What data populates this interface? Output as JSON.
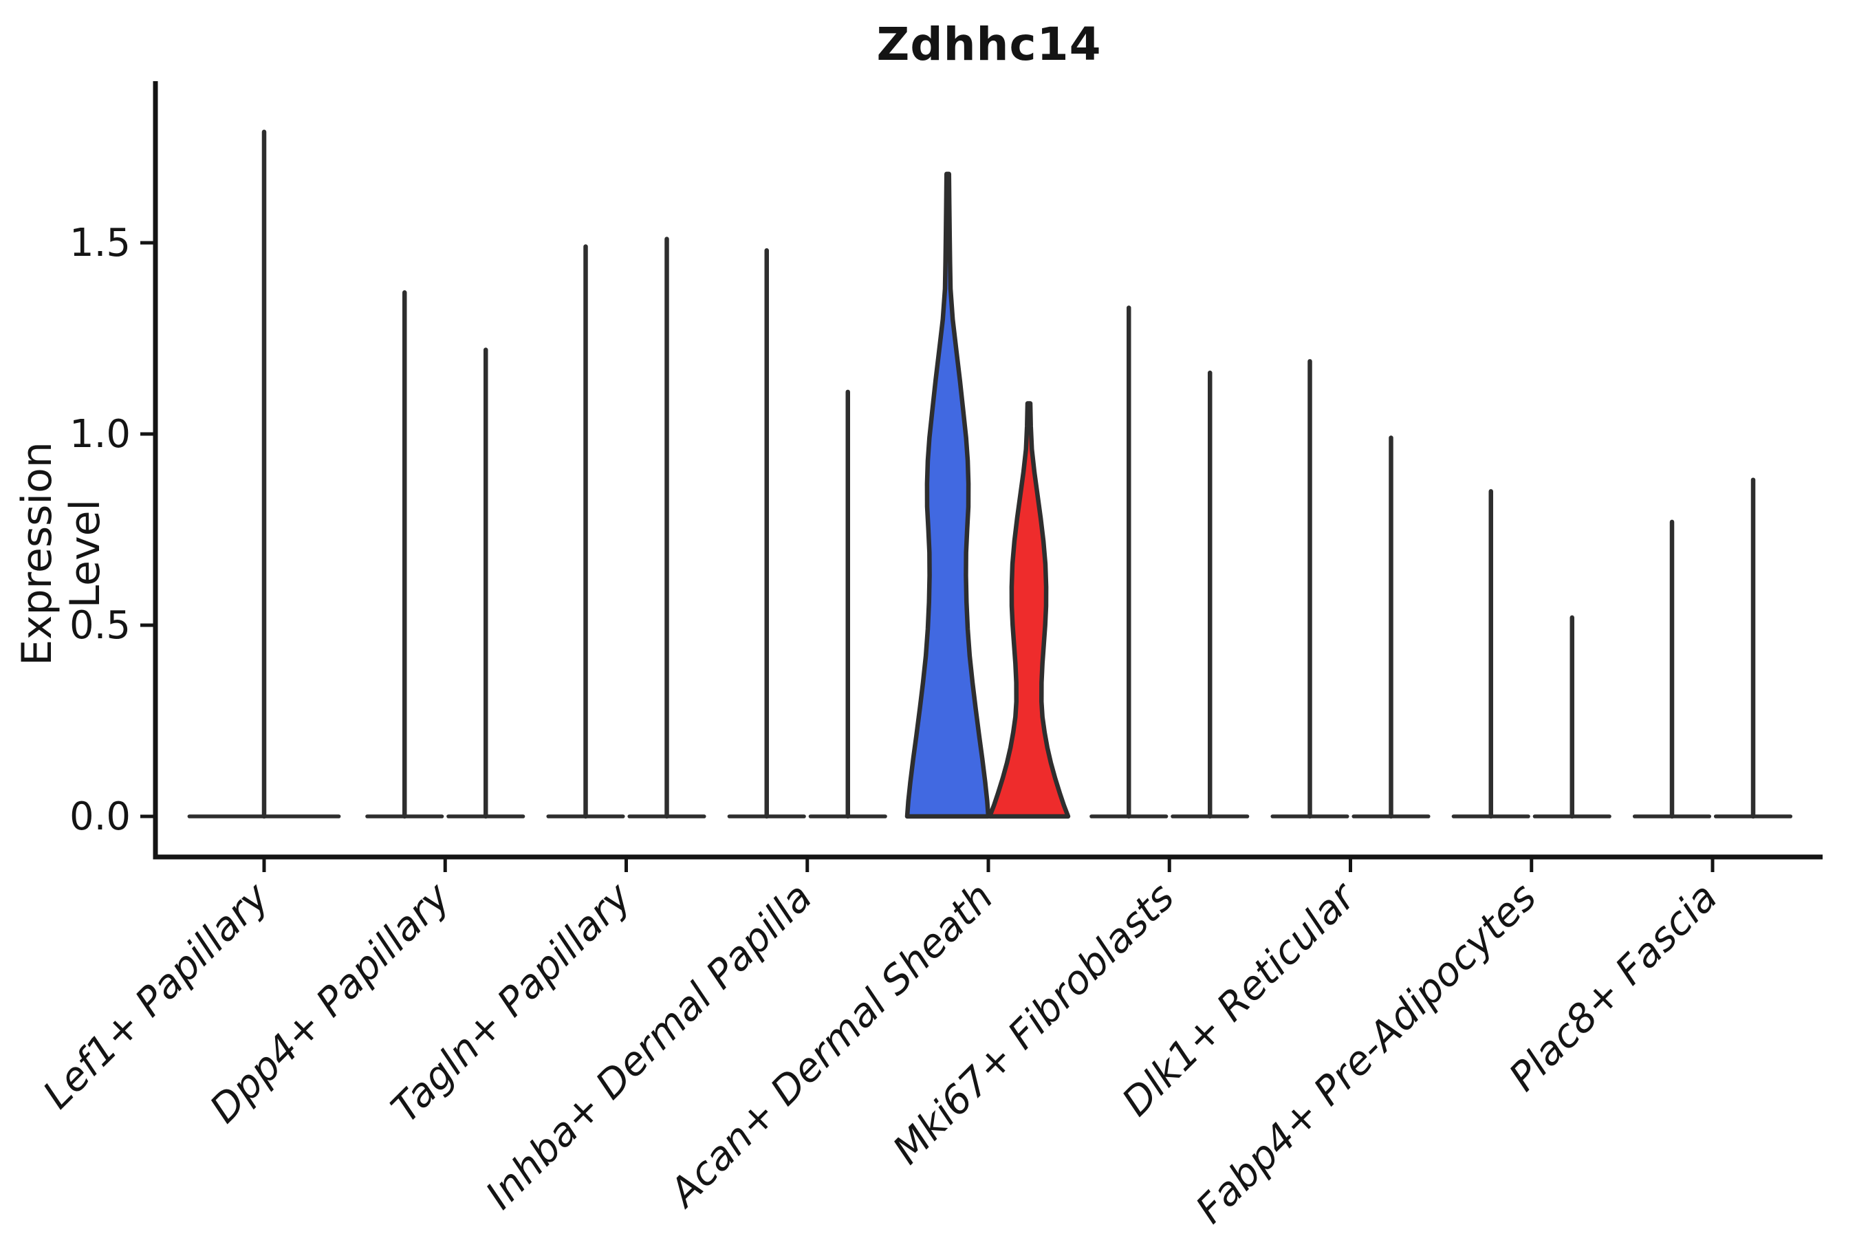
{
  "title": "Zdhhc14",
  "chart_data": {
    "type": "violin",
    "title": "Zdhhc14",
    "ylabel": "Expression Level",
    "xlabel": "",
    "legend_position": "none",
    "grid": false,
    "ylim": [
      -0.11,
      1.92
    ],
    "ytick_labels": [
      "0.0",
      "0.5",
      "1.0",
      "1.5"
    ],
    "ytick_values": [
      0.0,
      0.5,
      1.0,
      1.5
    ],
    "categories": [
      "Lef1+ Papillary",
      "Dpp4+ Papillary",
      "Tagln+ Papillary",
      "Inhba+ Dermal Papilla",
      "Acan+ Dermal Sheath",
      "Mki67+ Fibroblasts",
      "Dlk1+ Reticular",
      "Fabp4+ Pre-Adipocytes",
      "Plac8+ Fascia"
    ],
    "colors": {
      "split_blue": "#4169E1",
      "split_red": "#EE2C2C",
      "outline": "#2E2E2E",
      "axis": "#141414"
    },
    "groups": [
      {
        "category": "Lef1+ Papillary",
        "violins": [
          {
            "kind": "spike",
            "position": "center",
            "max": 1.79
          }
        ]
      },
      {
        "category": "Dpp4+ Papillary",
        "violins": [
          {
            "kind": "spike",
            "position": "left",
            "max": 1.37
          },
          {
            "kind": "spike",
            "position": "right",
            "max": 1.22
          }
        ]
      },
      {
        "category": "Tagln+ Papillary",
        "violins": [
          {
            "kind": "spike",
            "position": "left",
            "max": 1.49
          },
          {
            "kind": "spike",
            "position": "right",
            "max": 1.51
          }
        ]
      },
      {
        "category": "Inhba+ Dermal Papilla",
        "violins": [
          {
            "kind": "spike",
            "position": "left",
            "max": 1.48
          },
          {
            "kind": "spike",
            "position": "right",
            "max": 1.11
          }
        ]
      },
      {
        "category": "Acan+ Dermal Sheath",
        "violins": [
          {
            "kind": "density",
            "position": "left",
            "max": 1.68,
            "color": "#4169E1",
            "max_halfwidth": 59,
            "profile": [
              [
                1.68,
                0.03
              ],
              [
                1.6,
                0.038
              ],
              [
                1.52,
                0.047
              ],
              [
                1.45,
                0.056
              ],
              [
                1.38,
                0.068
              ],
              [
                1.3,
                0.122
              ],
              [
                1.22,
                0.21
              ],
              [
                1.14,
                0.3
              ],
              [
                1.06,
                0.382
              ],
              [
                0.99,
                0.452
              ],
              [
                0.93,
                0.492
              ],
              [
                0.87,
                0.51
              ],
              [
                0.81,
                0.508
              ],
              [
                0.75,
                0.478
              ],
              [
                0.69,
                0.452
              ],
              [
                0.63,
                0.448
              ],
              [
                0.56,
                0.462
              ],
              [
                0.49,
                0.492
              ],
              [
                0.42,
                0.54
              ],
              [
                0.35,
                0.61
              ],
              [
                0.28,
                0.69
              ],
              [
                0.21,
                0.775
              ],
              [
                0.15,
                0.852
              ],
              [
                0.09,
                0.922
              ],
              [
                0.04,
                0.972
              ],
              [
                0.0,
                1.0
              ]
            ]
          },
          {
            "kind": "density",
            "position": "right",
            "max": 1.08,
            "color": "#EE2C2C",
            "max_halfwidth": 57,
            "profile": [
              [
                1.08,
                0.035
              ],
              [
                1.02,
                0.048
              ],
              [
                0.96,
                0.075
              ],
              [
                0.9,
                0.14
              ],
              [
                0.84,
                0.22
              ],
              [
                0.78,
                0.3
              ],
              [
                0.72,
                0.37
              ],
              [
                0.66,
                0.42
              ],
              [
                0.6,
                0.44
              ],
              [
                0.55,
                0.438
              ],
              [
                0.5,
                0.415
              ],
              [
                0.45,
                0.38
              ],
              [
                0.4,
                0.345
              ],
              [
                0.35,
                0.322
              ],
              [
                0.3,
                0.32
              ],
              [
                0.26,
                0.345
              ],
              [
                0.22,
                0.4
              ],
              [
                0.18,
                0.47
              ],
              [
                0.14,
                0.56
              ],
              [
                0.1,
                0.668
              ],
              [
                0.06,
                0.79
              ],
              [
                0.03,
                0.888
              ],
              [
                0.0,
                1.0
              ]
            ]
          }
        ]
      },
      {
        "category": "Mki67+ Fibroblasts",
        "violins": [
          {
            "kind": "spike",
            "position": "left",
            "max": 1.33
          },
          {
            "kind": "spike",
            "position": "right",
            "max": 1.16
          }
        ]
      },
      {
        "category": "Dlk1+ Reticular",
        "violins": [
          {
            "kind": "spike",
            "position": "left",
            "max": 1.19
          },
          {
            "kind": "spike",
            "position": "right",
            "max": 0.99
          }
        ]
      },
      {
        "category": "Fabp4+ Pre-Adipocytes",
        "violins": [
          {
            "kind": "spike",
            "position": "left",
            "max": 0.85
          },
          {
            "kind": "spike",
            "position": "right",
            "max": 0.52
          }
        ]
      },
      {
        "category": "Plac8+ Fascia",
        "violins": [
          {
            "kind": "spike",
            "position": "left",
            "max": 0.77
          },
          {
            "kind": "spike",
            "position": "right",
            "max": 0.88
          }
        ]
      }
    ]
  }
}
